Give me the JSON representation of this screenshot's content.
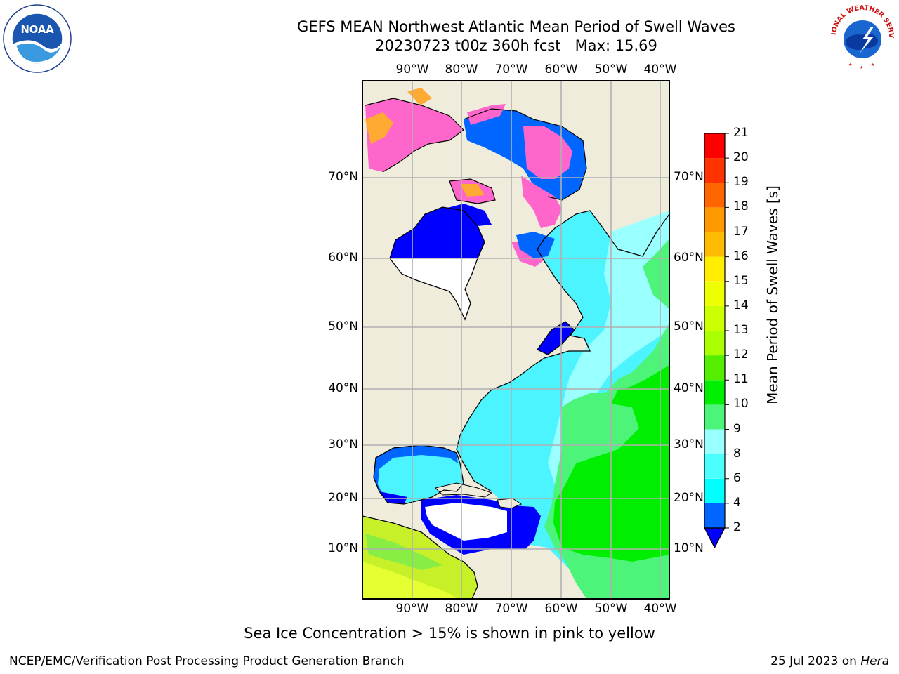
{
  "header": {
    "title": "GEFS MEAN Northwest Atlantic Mean Period of Swell Waves",
    "subtitle": "20230723 t00z 360h fcst   Max: 15.69"
  },
  "logos": {
    "left": "NOAA",
    "left_ring": "NATIONAL OCEANIC AND ATMOSPHERIC ADMINISTRATION · U.S. DEPARTMENT OF COMMERCE",
    "right_ring": "NATIONAL WEATHER SERVICE"
  },
  "map": {
    "lon_labels": [
      "90°W",
      "80°W",
      "70°W",
      "60°W",
      "50°W",
      "40°W"
    ],
    "lat_labels": [
      "70°N",
      "60°N",
      "50°N",
      "40°N",
      "30°N",
      "20°N",
      "10°N"
    ],
    "colors": {
      "land": "#efecdc",
      "ocean_low": "#0000ff",
      "ocean_cyan": "#4cf4ff",
      "ocean_lightcyan": "#99ffff",
      "ocean_green": "#4cf47a",
      "ocean_brightgreen": "#00ee00",
      "ice_pink": "#ff66cc",
      "ice_orange": "#ffaa33",
      "grid": "#b0b0b0"
    }
  },
  "colorbar": {
    "title": "Mean Period of Swell Waves [s]",
    "ticks": [
      "2",
      "4",
      "6",
      "8",
      "9",
      "10",
      "11",
      "12",
      "13",
      "14",
      "15",
      "16",
      "17",
      "18",
      "19",
      "20",
      "21"
    ],
    "colors": [
      "#0000ff",
      "#0066ff",
      "#00ffff",
      "#4cffff",
      "#99ffff",
      "#4cf47a",
      "#00ee00",
      "#55ee00",
      "#aaff00",
      "#ccff00",
      "#eeff00",
      "#ffee00",
      "#ffbb00",
      "#ff9900",
      "#ff6600",
      "#ff3300",
      "#ff0000"
    ]
  },
  "note": "Sea Ice Concentration > 15% is shown in pink to yellow",
  "footer": {
    "left": "NCEP/EMC/Verification Post Processing Product Generation Branch",
    "date": "25 Jul 2023 on ",
    "machine": "Hera"
  }
}
